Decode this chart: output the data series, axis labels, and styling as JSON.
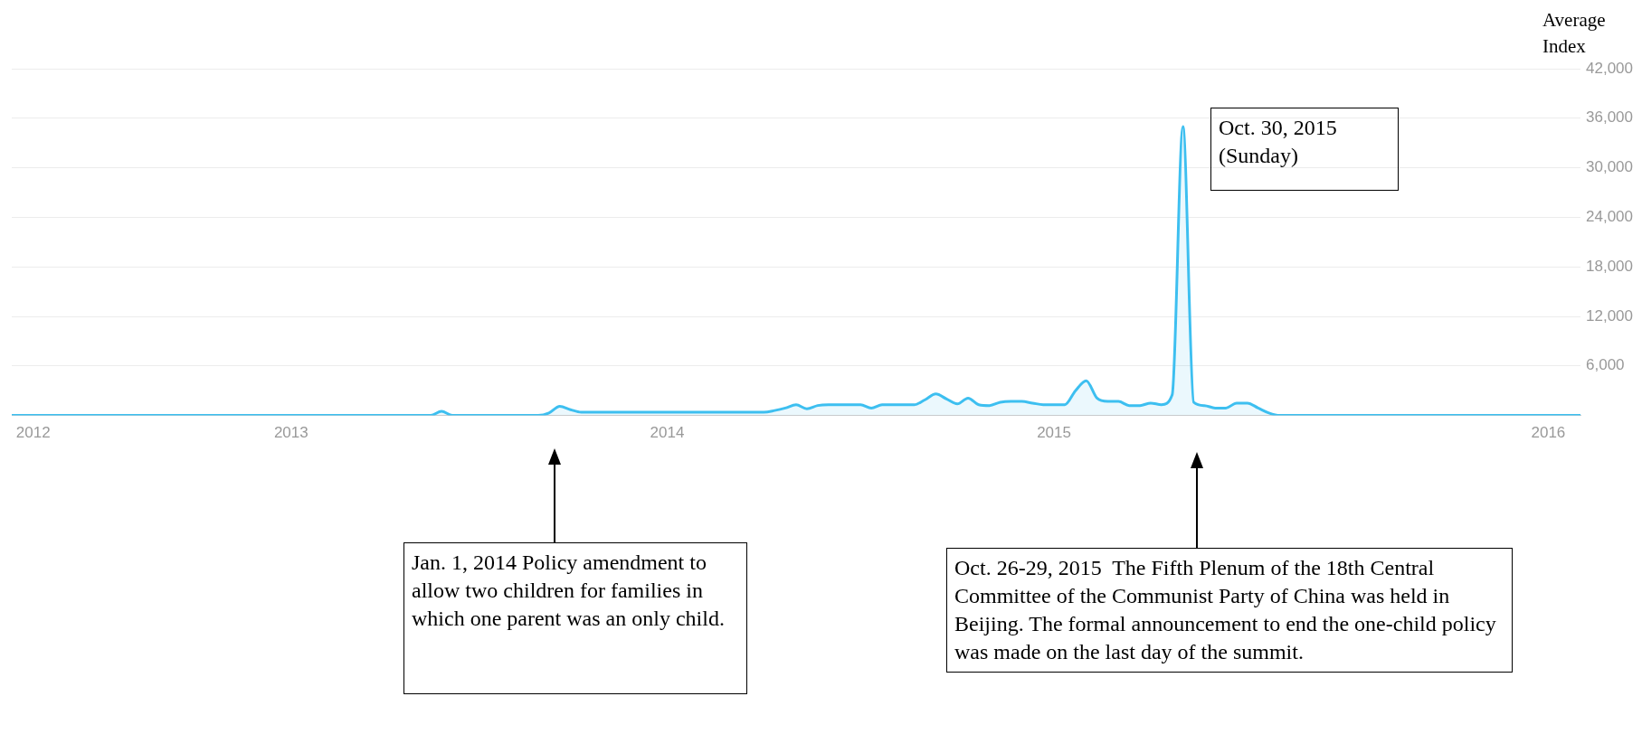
{
  "chart_data": {
    "type": "area",
    "ylabel": "Average Index",
    "categories": [
      null,
      null,
      "2012",
      null,
      null,
      null,
      null,
      null,
      null,
      null,
      null,
      null,
      null,
      null,
      null,
      null,
      null,
      null,
      null,
      null,
      null,
      null,
      null,
      null,
      null,
      null,
      "2013",
      null,
      null,
      null,
      null,
      null,
      null,
      null,
      null,
      null,
      null,
      null,
      null,
      null,
      null,
      null,
      null,
      null,
      null,
      null,
      null,
      null,
      null,
      null,
      null,
      null,
      null,
      null,
      null,
      null,
      null,
      null,
      null,
      null,
      null,
      "2014",
      null,
      null,
      null,
      null,
      null,
      null,
      null,
      null,
      null,
      null,
      null,
      null,
      null,
      null,
      null,
      null,
      null,
      null,
      null,
      null,
      null,
      null,
      null,
      null,
      null,
      null,
      null,
      null,
      null,
      null,
      null,
      null,
      null,
      null,
      null,
      "2015",
      null,
      null,
      null,
      null,
      null,
      null,
      null,
      null,
      null,
      null,
      null,
      null,
      null,
      null,
      null,
      null,
      null,
      null,
      null,
      null,
      null,
      null,
      null,
      null,
      null,
      null,
      null,
      null,
      null,
      null,
      null,
      null,
      null,
      null,
      null,
      null,
      null,
      null,
      null,
      null,
      null,
      null,
      null,
      null,
      null,
      "2016",
      null,
      null,
      null
    ],
    "series": [
      {
        "color": "#3dbff0",
        "values": [
          0,
          0,
          0,
          0,
          0,
          0,
          0,
          0,
          0,
          0,
          0,
          0,
          0,
          0,
          0,
          0,
          0,
          0,
          0,
          0,
          0,
          0,
          0,
          0,
          0,
          0,
          0,
          0,
          0,
          0,
          0,
          0,
          0,
          0,
          0,
          0,
          0,
          0,
          0,
          0,
          500,
          0,
          0,
          0,
          0,
          0,
          0,
          0,
          0,
          0,
          300,
          1100,
          700,
          400,
          400,
          400,
          400,
          400,
          400,
          400,
          400,
          400,
          400,
          400,
          400,
          400,
          400,
          400,
          400,
          400,
          400,
          600,
          900,
          1300,
          800,
          1200,
          1300,
          1300,
          1300,
          1300,
          900,
          1300,
          1300,
          1300,
          1300,
          1900,
          2600,
          2000,
          1400,
          2100,
          1300,
          1200,
          1600,
          1700,
          1700,
          1500,
          1300,
          1300,
          1300,
          3000,
          4200,
          2100,
          1700,
          1700,
          1200,
          1200,
          1500,
          1300,
          2500,
          35000,
          1600,
          1200,
          900,
          900,
          1500,
          1500,
          900,
          300,
          0,
          0,
          0,
          0,
          0,
          0,
          0,
          0,
          0,
          0,
          0,
          0,
          0,
          0,
          0,
          0,
          0,
          0,
          0,
          0,
          0,
          0,
          0,
          0,
          0,
          0,
          0,
          0,
          0
        ]
      }
    ],
    "ylim": [
      0,
      42000
    ],
    "yticks": [
      {
        "value": 0,
        "label": null
      },
      {
        "value": 6000,
        "label": "6,000"
      },
      {
        "value": 12000,
        "label": "12,000"
      },
      {
        "value": 18000,
        "label": "18,000"
      },
      {
        "value": 24000,
        "label": "24,000"
      },
      {
        "value": 30000,
        "label": "30,000"
      },
      {
        "value": 36000,
        "label": "36,000"
      },
      {
        "value": 42000,
        "label": "42,000"
      }
    ],
    "grid": "y",
    "annotations": [
      "Oct. 30, 2015\n(Sunday)",
      "Jan. 1, 2014 Policy amendment to allow two children for families in which one parent was an only child.",
      "Oct. 26-29, 2015  The Fifth Plenum of the 18th Central Committee of the Communist Party of China was held in Beijing. The formal announcement to end the one-child policy was made on the last day of the summit."
    ]
  }
}
